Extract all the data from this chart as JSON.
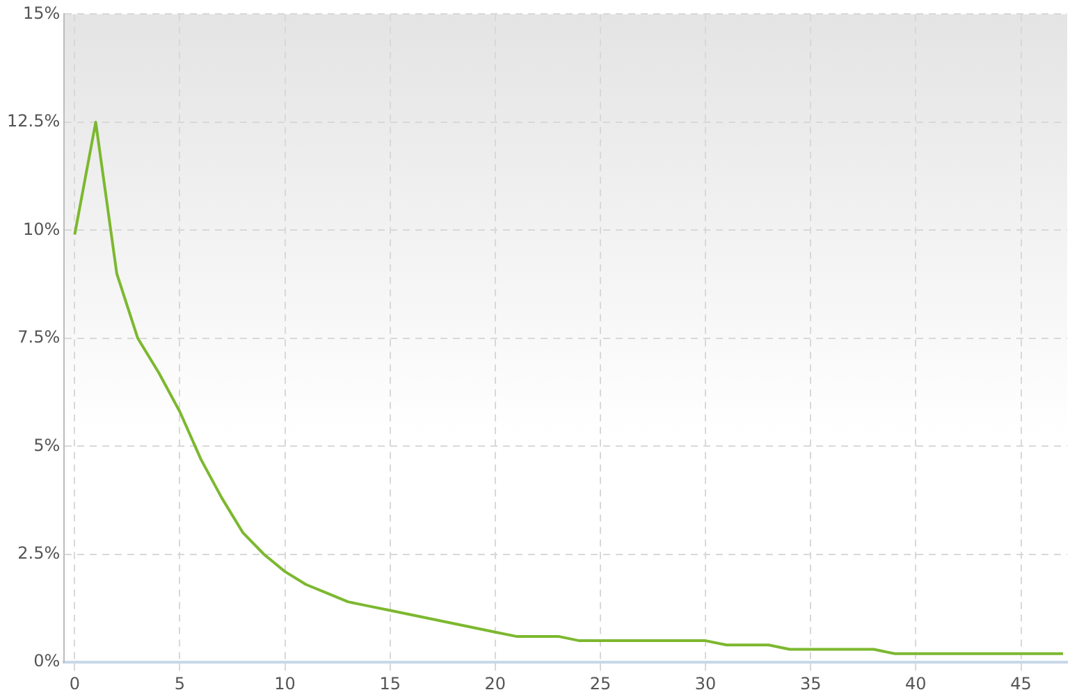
{
  "chart_data": {
    "type": "line",
    "x": [
      0,
      1,
      2,
      3,
      4,
      5,
      6,
      7,
      8,
      9,
      10,
      11,
      12,
      13,
      14,
      15,
      16,
      17,
      18,
      19,
      20,
      21,
      22,
      23,
      24,
      25,
      26,
      27,
      28,
      29,
      30,
      31,
      32,
      33,
      34,
      35,
      36,
      37,
      38,
      39,
      40,
      41,
      42,
      43,
      44,
      45,
      46,
      47
    ],
    "series": [
      {
        "color": "#7cb82f",
        "values": [
          9.9,
          12.5,
          9.0,
          7.5,
          6.7,
          5.8,
          4.7,
          3.8,
          3.0,
          2.5,
          2.1,
          1.8,
          1.6,
          1.4,
          1.3,
          1.2,
          1.1,
          1.0,
          0.9,
          0.8,
          0.7,
          0.6,
          0.6,
          0.6,
          0.5,
          0.5,
          0.5,
          0.5,
          0.5,
          0.5,
          0.5,
          0.4,
          0.4,
          0.4,
          0.3,
          0.3,
          0.3,
          0.3,
          0.3,
          0.2,
          0.2,
          0.2,
          0.2,
          0.2,
          0.2,
          0.2,
          0.2,
          0.2
        ]
      }
    ],
    "xlim": [
      -0.5,
      47.2
    ],
    "xticks": [
      0,
      5,
      10,
      15,
      20,
      25,
      30,
      35,
      40,
      45
    ],
    "ylim": [
      0,
      15
    ],
    "yticks": [
      {
        "value": 0,
        "label": "0%"
      },
      {
        "value": 2.5,
        "label": "2.5%"
      },
      {
        "value": 5,
        "label": "5%"
      },
      {
        "value": 7.5,
        "label": "7.5%"
      },
      {
        "value": 10,
        "label": "10%"
      },
      {
        "value": 12.5,
        "label": "12.5%"
      },
      {
        "value": 15,
        "label": "15%"
      }
    ],
    "grid": true,
    "legend": false,
    "marker": "none",
    "line_style": "solid"
  }
}
